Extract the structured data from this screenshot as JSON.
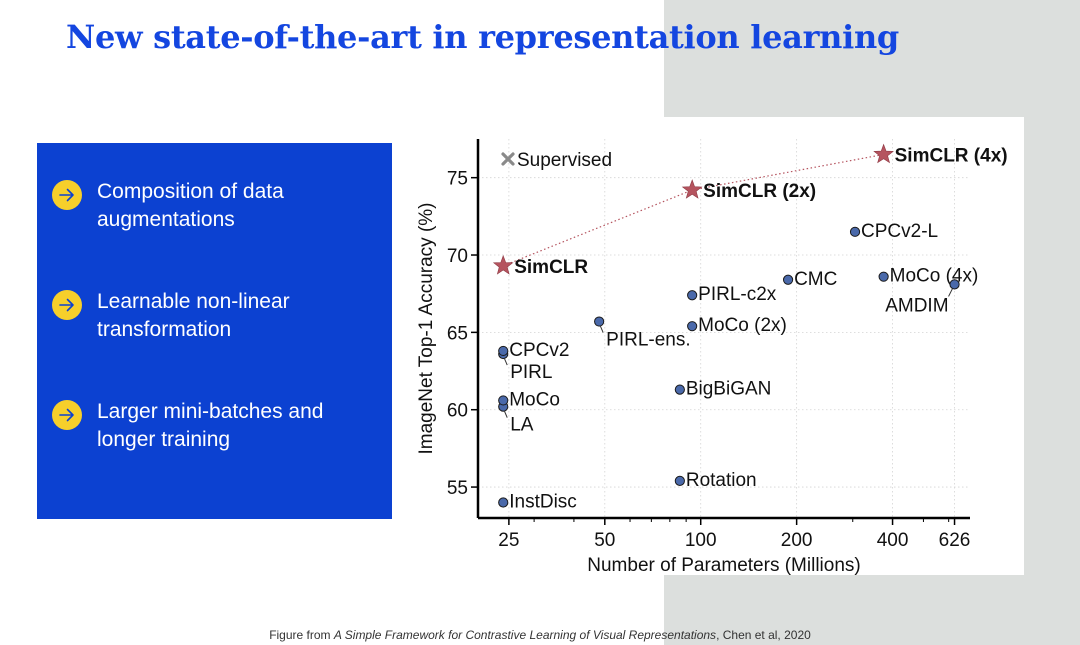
{
  "slide": {
    "title": "New state-of-the-art in representation learning",
    "bullets": [
      {
        "text": "Composition of data augmentations",
        "icon": "arrow-right-icon"
      },
      {
        "text": "Learnable non-linear transformation",
        "icon": "arrow-right-icon"
      },
      {
        "text": "Larger mini-batches and longer training",
        "icon": "arrow-right-icon"
      }
    ],
    "caption": {
      "prefix": "Figure from ",
      "paper": "A Simple Framework for Contrastive Learning of Visual Representations",
      "suffix": ", Chen et al, 2020"
    },
    "colors": {
      "title": "#1446e0",
      "box": "#0c41d1",
      "bullet_icon": "#f7cf2b",
      "panel": "#dcdfdd"
    }
  },
  "chart_data": {
    "type": "scatter",
    "title": "",
    "xlabel": "Number of Parameters (Millions)",
    "ylabel": "ImageNet Top-1 Accuracy (%)",
    "x_scale": "log",
    "xlim": [
      20,
      700
    ],
    "ylim": [
      53,
      77.5
    ],
    "xticks": [
      25,
      50,
      100,
      200,
      400,
      626
    ],
    "yticks": [
      55,
      60,
      65,
      70,
      75
    ],
    "grid": true,
    "legend": {
      "label": "Supervised",
      "marker": "x",
      "position": "top-left"
    },
    "colors": {
      "point": "#4a69aa",
      "star": "#b5545f",
      "supervised": "#8a8a8a"
    },
    "points": [
      {
        "label": "InstDisc",
        "x": 24,
        "y": 54.0,
        "anchor": "right"
      },
      {
        "label": "LA",
        "x": 24,
        "y": 60.2,
        "anchor": "below"
      },
      {
        "label": "MoCo",
        "x": 24,
        "y": 60.6,
        "anchor": "right"
      },
      {
        "label": "PIRL",
        "x": 24,
        "y": 63.6,
        "anchor": "below"
      },
      {
        "label": "CPCv2",
        "x": 24,
        "y": 63.8,
        "anchor": "right"
      },
      {
        "label": "PIRL-ens.",
        "x": 48,
        "y": 65.7,
        "anchor": "below"
      },
      {
        "label": "Rotation",
        "x": 86,
        "y": 55.4,
        "anchor": "right"
      },
      {
        "label": "BigBiGAN",
        "x": 86,
        "y": 61.3,
        "anchor": "right"
      },
      {
        "label": "MoCo (2x)",
        "x": 94,
        "y": 65.4,
        "anchor": "right"
      },
      {
        "label": "PIRL-c2x",
        "x": 94,
        "y": 67.4,
        "anchor": "right"
      },
      {
        "label": "CMC",
        "x": 188,
        "y": 68.4,
        "anchor": "right"
      },
      {
        "label": "CPCv2-L",
        "x": 305,
        "y": 71.5,
        "anchor": "right"
      },
      {
        "label": "MoCo (4x)",
        "x": 375,
        "y": 68.6,
        "anchor": "right"
      },
      {
        "label": "AMDIM",
        "x": 626,
        "y": 68.1,
        "anchor": "below-left"
      }
    ],
    "series": [
      {
        "name": "SimCLR",
        "marker": "star",
        "line": "dotted",
        "points": [
          {
            "label": "SimCLR",
            "x": 24,
            "y": 69.3
          },
          {
            "label": "SimCLR (2x)",
            "x": 94,
            "y": 74.2
          },
          {
            "label": "SimCLR (4x)",
            "x": 375,
            "y": 76.5
          }
        ]
      }
    ]
  }
}
